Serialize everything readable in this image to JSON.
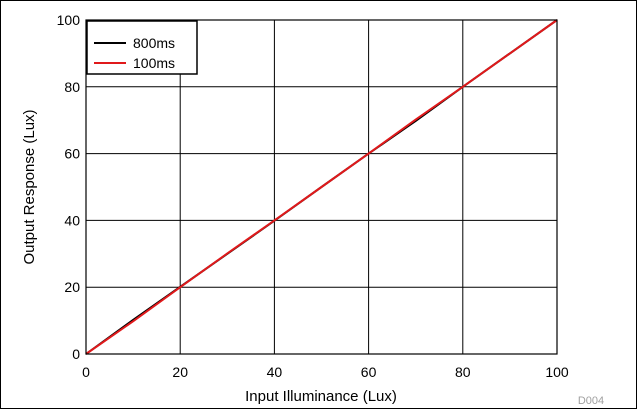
{
  "chart_data": {
    "type": "line",
    "xlabel": "Input Illuminance (Lux)",
    "ylabel": "Output Response (Lux)",
    "xlim": [
      0,
      100
    ],
    "ylim": [
      0,
      100
    ],
    "x_ticks": [
      0,
      20,
      40,
      60,
      80,
      100
    ],
    "y_ticks": [
      0,
      20,
      40,
      60,
      80,
      100
    ],
    "grid": true,
    "legend_position": "top-left",
    "series": [
      {
        "name": "800ms",
        "color": "#000000",
        "x": [
          0,
          10,
          20,
          30,
          40,
          50,
          60,
          70,
          80,
          90,
          100
        ],
        "y": [
          0,
          10.2,
          20.1,
          30.0,
          39.9,
          50.0,
          60.0,
          69.8,
          80.0,
          90.0,
          100
        ]
      },
      {
        "name": "100ms",
        "color": "#e0191b",
        "x": [
          0,
          10,
          20,
          30,
          40,
          50,
          60,
          70,
          80,
          90,
          100
        ],
        "y": [
          0,
          9.8,
          20.0,
          30.1,
          40.0,
          50.0,
          60.0,
          70.2,
          80.0,
          90.0,
          100
        ]
      }
    ],
    "code": "D004"
  }
}
